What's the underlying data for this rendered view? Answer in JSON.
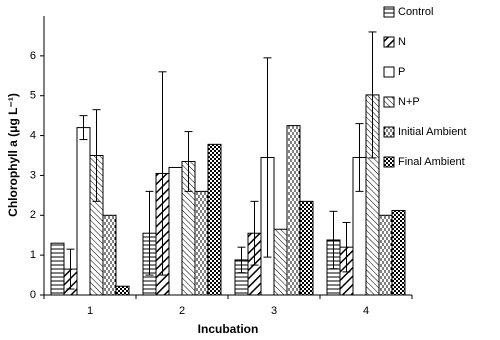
{
  "chart_data": {
    "type": "bar",
    "y_label": "Chlorophyll a (μg L⁻¹)",
    "x_label": "Incubation",
    "categories": [
      "1",
      "2",
      "3",
      "4"
    ],
    "ylim": [
      0,
      7
    ],
    "yticks": [
      0,
      1,
      2,
      3,
      4,
      5,
      6
    ],
    "legend": "top-right",
    "series": [
      {
        "name": "Control",
        "color": "#000000",
        "pattern": "hlines",
        "values": [
          1.3,
          1.55,
          0.88,
          1.38
        ],
        "errors": [
          null,
          1.05,
          0.32,
          0.72
        ]
      },
      {
        "name": "N",
        "color": "#000000",
        "pattern": "thick-diagonal",
        "values": [
          0.65,
          3.05,
          1.55,
          1.2
        ],
        "errors": [
          0.5,
          2.55,
          0.8,
          0.62
        ]
      },
      {
        "name": "P",
        "color": "#000000",
        "pattern": "solid-white",
        "values": [
          4.2,
          3.2,
          3.45,
          3.45
        ],
        "errors": [
          0.3,
          null,
          2.5,
          0.85
        ]
      },
      {
        "name": "N+P",
        "color": "#000000",
        "pattern": "thin-diagonal",
        "values": [
          3.5,
          3.35,
          1.65,
          5.02
        ],
        "errors": [
          1.15,
          0.75,
          null,
          1.58
        ]
      },
      {
        "name": "Initial Ambient",
        "color": "#000000",
        "pattern": "dashes",
        "values": [
          2.0,
          2.6,
          4.25,
          2.0
        ],
        "errors": [
          null,
          null,
          null,
          null
        ]
      },
      {
        "name": "Final Ambient",
        "color": "#000000",
        "pattern": "checker",
        "values": [
          0.22,
          3.78,
          2.35,
          2.12
        ],
        "errors": [
          null,
          null,
          null,
          null
        ]
      }
    ]
  }
}
